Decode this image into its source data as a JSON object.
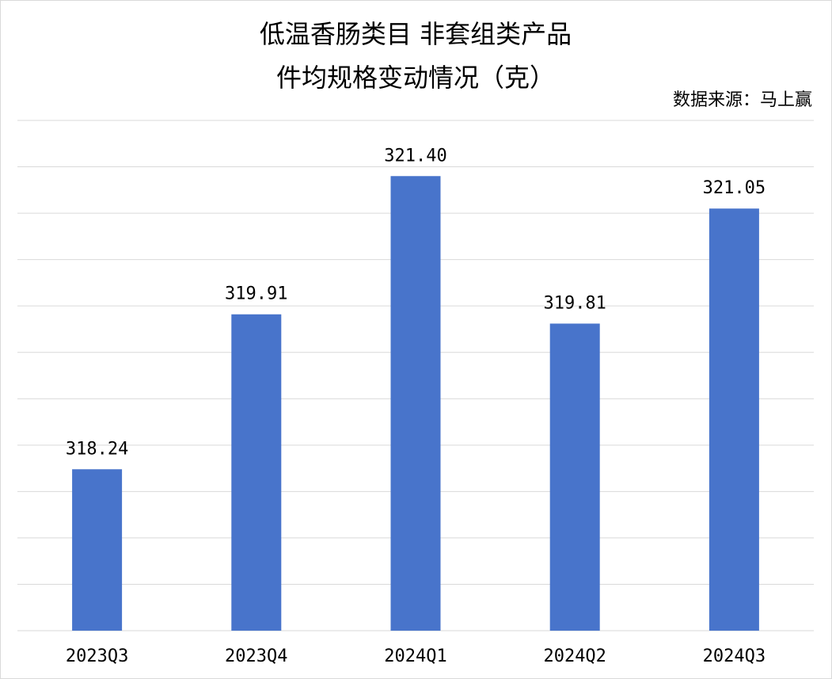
{
  "chart_data": {
    "type": "bar",
    "title": [
      "低温香肠类目 非套组类产品",
      "件均规格变动情况（克）"
    ],
    "source": "数据来源：马上赢",
    "categories": [
      "2023Q3",
      "2023Q4",
      "2024Q1",
      "2024Q2",
      "2024Q3"
    ],
    "values": [
      318.24,
      319.91,
      321.4,
      319.81,
      321.05
    ],
    "value_labels": [
      "318.24",
      "319.91",
      "321.40",
      "319.81",
      "321.05"
    ],
    "color": "#4874cb",
    "ylim": [
      316.5,
      322
    ],
    "yticks": [
      316.5,
      317,
      317.5,
      318,
      318.5,
      319,
      319.5,
      320,
      320.5,
      321,
      321.5,
      322
    ],
    "grid": true
  }
}
